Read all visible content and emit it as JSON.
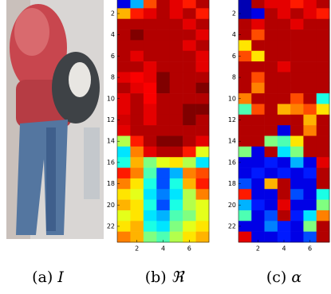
{
  "figures": [
    {
      "label": "(a)",
      "symbol": "I"
    },
    {
      "label": "(b)",
      "symbol": "ℜ",
      "heatmap": {
        "colormap": "jet",
        "ydir": "reverse",
        "xlim": [
          0.5,
          7.5
        ],
        "ylim": [
          0.5,
          23.5
        ],
        "xticks": [
          2,
          4,
          6
        ],
        "yticks": [
          2,
          4,
          6,
          8,
          10,
          12,
          14,
          16,
          18,
          20,
          22
        ],
        "values": [
          [
            0.1,
            0.3,
            0.8,
            0.95,
            0.9,
            0.85,
            0.95
          ],
          [
            0.7,
            0.85,
            0.9,
            0.95,
            0.9,
            0.95,
            0.85
          ],
          [
            0.95,
            0.95,
            0.95,
            0.95,
            0.95,
            0.9,
            0.95
          ],
          [
            0.95,
            1,
            0.95,
            0.95,
            0.95,
            0.95,
            0.9
          ],
          [
            0.95,
            0.95,
            0.95,
            0.95,
            0.95,
            0.9,
            0.95
          ],
          [
            0.95,
            0.9,
            0.95,
            0.95,
            0.95,
            0.95,
            0.9
          ],
          [
            0.95,
            0.95,
            0.9,
            0.95,
            0.95,
            0.95,
            0.9
          ],
          [
            0.9,
            0.88,
            0.9,
            1,
            0.95,
            0.95,
            0.95
          ],
          [
            0.95,
            0.9,
            0.88,
            1,
            0.95,
            0.95,
            1
          ],
          [
            0.9,
            0.95,
            0.88,
            0.95,
            0.95,
            0.95,
            0.95
          ],
          [
            0.9,
            0.95,
            0.9,
            0.95,
            0.95,
            1,
            1
          ],
          [
            0.92,
            0.95,
            0.9,
            0.95,
            0.95,
            1,
            0.95
          ],
          [
            0.9,
            0.95,
            0.95,
            0.95,
            0.95,
            0.95,
            0.95
          ],
          [
            0.55,
            0.85,
            0.95,
            1,
            1,
            0.95,
            0.9
          ],
          [
            0.35,
            0.75,
            0.9,
            0.95,
            0.95,
            0.85,
            0.6
          ],
          [
            0.4,
            0.7,
            0.5,
            0.6,
            0.65,
            0.55,
            0.35
          ],
          [
            0.85,
            0.75,
            0.45,
            0.2,
            0.3,
            0.75,
            0.8
          ],
          [
            0.75,
            0.65,
            0.4,
            0.2,
            0.4,
            0.7,
            0.85
          ],
          [
            0.65,
            0.6,
            0.35,
            0.25,
            0.35,
            0.55,
            0.75
          ],
          [
            0.7,
            0.65,
            0.4,
            0.2,
            0.4,
            0.55,
            0.6
          ],
          [
            0.6,
            0.65,
            0.35,
            0.3,
            0.45,
            0.5,
            0.6
          ],
          [
            0.65,
            0.7,
            0.4,
            0.35,
            0.5,
            0.6,
            0.65
          ],
          [
            0.75,
            0.7,
            0.5,
            0.45,
            0.55,
            0.65,
            0.7
          ]
        ]
      }
    },
    {
      "label": "(c)",
      "symbol": "α",
      "heatmap": {
        "colormap": "jet",
        "ydir": "reverse",
        "xlim": [
          0.5,
          7.5
        ],
        "ylim": [
          0.5,
          23.5
        ],
        "xticks": [
          2,
          4,
          6
        ],
        "yticks": [
          2,
          4,
          6,
          8,
          10,
          12,
          14,
          16,
          18,
          20,
          22
        ],
        "values": [
          [
            0.05,
            0.95,
            0.9,
            0.9,
            0.85,
            0.9,
            0.95
          ],
          [
            0.05,
            0.1,
            0.95,
            0.9,
            0.95,
            0.9,
            0.85
          ],
          [
            0.95,
            0.9,
            0.95,
            0.95,
            0.9,
            0.95,
            0.95
          ],
          [
            0.95,
            0.8,
            0.95,
            0.95,
            0.95,
            0.95,
            0.95
          ],
          [
            0.65,
            0.95,
            0.95,
            0.95,
            0.95,
            0.95,
            0.95
          ],
          [
            0.8,
            0.65,
            0.95,
            0.95,
            0.95,
            0.95,
            0.95
          ],
          [
            0.95,
            0.95,
            0.95,
            0.9,
            0.95,
            0.95,
            0.95
          ],
          [
            0.95,
            0.8,
            0.95,
            0.95,
            0.95,
            0.95,
            0.95
          ],
          [
            0.95,
            0.75,
            0.95,
            0.95,
            0.95,
            0.95,
            0.95
          ],
          [
            0.75,
            0.95,
            0.95,
            0.95,
            0.8,
            0.95,
            0.4
          ],
          [
            0.45,
            0.8,
            0.95,
            0.7,
            0.75,
            0.8,
            0.65
          ],
          [
            0.95,
            0.95,
            0.95,
            0.95,
            0.95,
            0.7,
            0.95
          ],
          [
            0.95,
            0.95,
            0.95,
            0.1,
            0.95,
            0.75,
            0.95
          ],
          [
            0.95,
            0.95,
            0.5,
            0.45,
            0.65,
            0.95,
            0.95
          ],
          [
            0.5,
            0.1,
            0.95,
            0.35,
            0.5,
            0.95,
            0.95
          ],
          [
            0.1,
            0.1,
            0.15,
            0.1,
            0.3,
            0.1,
            0.9
          ],
          [
            0.1,
            0.15,
            0.1,
            0.15,
            0.1,
            0.15,
            0.95
          ],
          [
            0.2,
            0.1,
            0.7,
            0.95,
            0.1,
            0.1,
            0.95
          ],
          [
            0.85,
            0.1,
            0.1,
            0.95,
            0.2,
            0.1,
            0.4
          ],
          [
            0.3,
            0.15,
            0.1,
            0.9,
            0.1,
            0.1,
            0.5
          ],
          [
            0.45,
            0.1,
            0.2,
            0.95,
            0.15,
            0.35,
            0.75
          ],
          [
            0.1,
            0.1,
            0.25,
            0.15,
            0.1,
            0.5,
            0.95
          ],
          [
            0.9,
            0.1,
            0.1,
            0.15,
            0.1,
            0.2,
            0.95
          ]
        ]
      }
    }
  ]
}
